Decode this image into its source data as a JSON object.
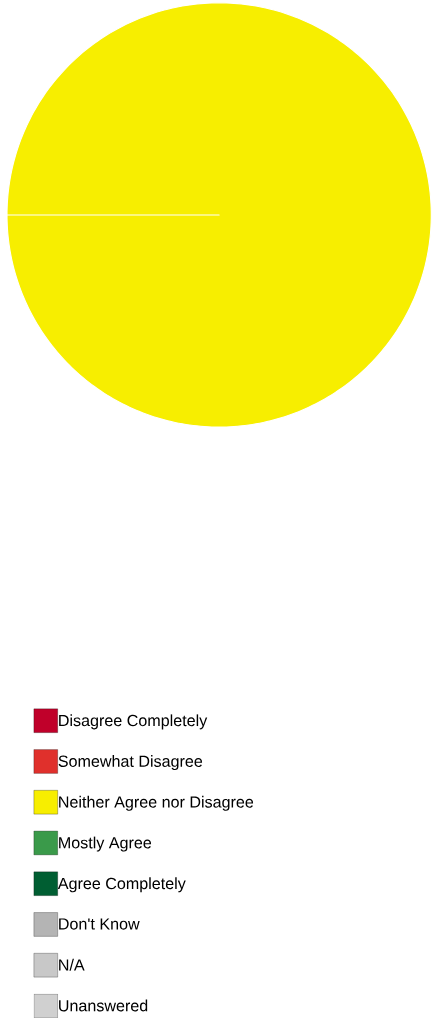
{
  "chart_data": {
    "type": "pie",
    "categories": [
      "Disagree Completely",
      "Somewhat Disagree",
      "Neither Agree nor Disagree",
      "Mostly Agree",
      "Agree Completely",
      "Don't Know",
      "N/A",
      "Unanswered"
    ],
    "values": [
      0,
      0,
      100,
      0,
      0,
      0,
      0,
      0
    ],
    "colors": [
      "#c0002a",
      "#e0302c",
      "#f7ee00",
      "#3a9a4a",
      "#005e32",
      "#b4b4b4",
      "#c8c8c8",
      "#d0d0d0"
    ],
    "legend": "bottom"
  }
}
